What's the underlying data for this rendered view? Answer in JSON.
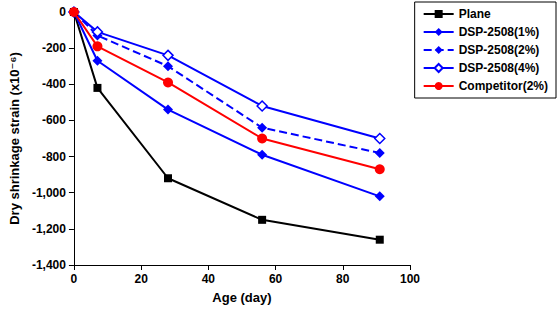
{
  "chart_data": {
    "type": "line",
    "x_label": "Age (day)",
    "y_label": "Dry shrinkage strain (x10⁻⁶)",
    "xlim": [
      0,
      100
    ],
    "xticks": [
      0,
      20,
      40,
      60,
      80,
      100
    ],
    "ylim": [
      -1400,
      0
    ],
    "yticks": [
      -1400,
      -1200,
      -1000,
      -800,
      -600,
      -400,
      -200,
      0
    ],
    "grid": false,
    "legend": "upper right",
    "series": [
      {
        "name": "Plane",
        "color": "#000000",
        "marker": "square",
        "line_style": "solid",
        "x": [
          0,
          7,
          28,
          56,
          91
        ],
        "values": [
          0,
          -420,
          -920,
          -1150,
          -1260
        ]
      },
      {
        "name": "DSP-2508(1%)",
        "color": "#0000ff",
        "marker": "diamond",
        "line_style": "solid",
        "x": [
          0,
          7,
          28,
          56,
          91
        ],
        "values": [
          0,
          -270,
          -540,
          -790,
          -1020
        ]
      },
      {
        "name": "DSP-2508(2%)",
        "color": "#0000ff",
        "marker": "diamond",
        "line_style": "dashed",
        "x": [
          0,
          7,
          28,
          56,
          91
        ],
        "values": [
          0,
          -130,
          -300,
          -640,
          -780
        ]
      },
      {
        "name": "DSP-2508(4%)",
        "color": "#0000ff",
        "marker": "diamond-open",
        "line_style": "solid",
        "x": [
          0,
          7,
          28,
          56,
          91
        ],
        "values": [
          0,
          -110,
          -240,
          -520,
          -700
        ]
      },
      {
        "name": "Competitor(2%)",
        "color": "#ff0000",
        "marker": "circle",
        "line_style": "solid",
        "x": [
          0,
          7,
          28,
          56,
          91
        ],
        "values": [
          0,
          -190,
          -390,
          -700,
          -870
        ]
      }
    ]
  }
}
